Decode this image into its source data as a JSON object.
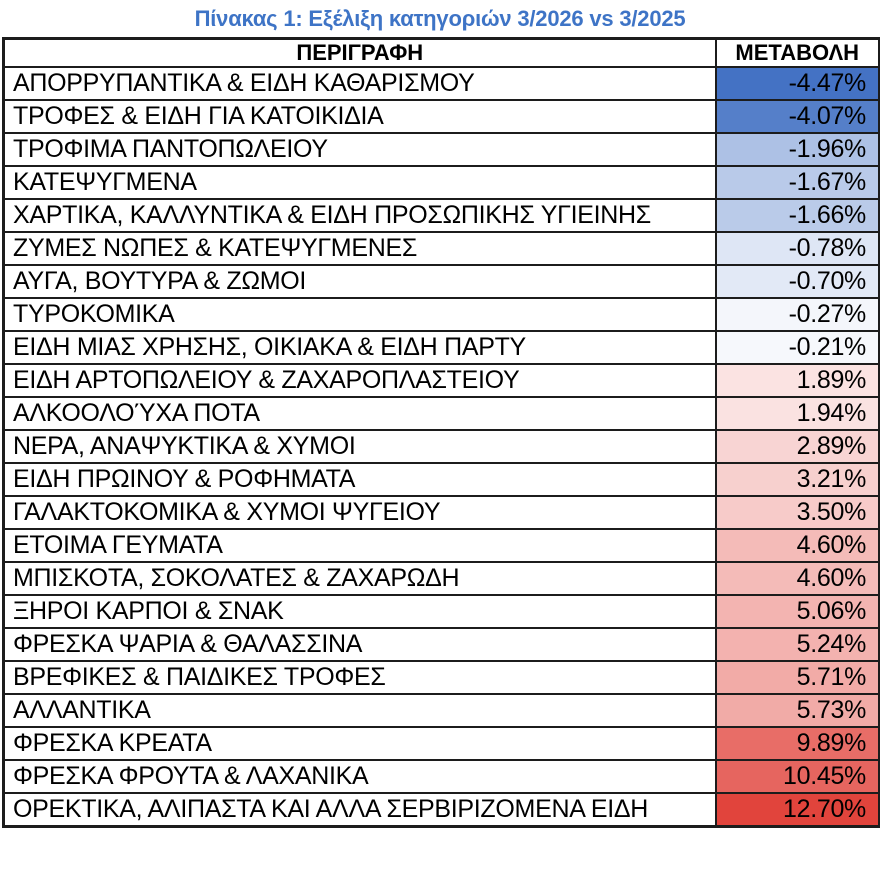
{
  "title": "Πίνακας 1: Εξέλιξη κατηγοριών 3/2026 vs 3/2025",
  "chart_data": {
    "type": "table",
    "title": "Πίνακας 1: Εξέλιξη κατηγοριών 3/2026 vs 3/2025",
    "columns": [
      "ΠΕΡΙΓΡΑΦΗ",
      "ΜΕΤΑΒΟΛΗ"
    ],
    "categories": [
      "ΑΠΟΡΡΥΠΑΝΤΙΚΑ & ΕΙΔΗ ΚΑΘΑΡΙΣΜΟΥ",
      "ΤΡΟΦΕΣ & ΕΙΔΗ ΓΙΑ ΚΑΤΟΙΚΙΔΙΑ",
      "ΤΡΟΦΙΜΑ ΠΑΝΤΟΠΩΛΕΙΟΥ",
      "ΚΑΤΕΨΥΓΜΕΝΑ",
      "ΧΑΡΤΙΚΑ, ΚΑΛΛΥΝΤΙΚΑ & ΕΙΔΗ ΠΡΟΣΩΠΙΚΗΣ ΥΓΙΕΙΝΗΣ",
      "ΖΥΜΕΣ ΝΩΠΕΣ & ΚΑΤΕΨΥΓΜΕΝΕΣ",
      "ΑΥΓΑ, ΒΟΥΤΥΡΑ & ΖΩΜΟΙ",
      "ΤΥΡΟΚΟΜΙΚΑ",
      "ΕΙΔΗ ΜΙΑΣ ΧΡΗΣΗΣ, ΟΙΚΙΑΚΑ & ΕΙΔΗ ΠΑΡΤΥ",
      "ΕΙΔΗ ΑΡΤΟΠΩΛΕΙΟΥ & ΖΑΧΑΡΟΠΛΑΣΤΕΙΟΥ",
      "ΑΛΚΟΟΛΟΎΧΑ ΠΟΤΑ",
      "ΝΕΡΑ, ΑΝΑΨΥΚΤΙΚΑ & ΧΥΜΟΙ",
      "ΕΙΔΗ ΠΡΩΙΝΟΥ & ΡΟΦΗΜΑΤΑ",
      "ΓΑΛΑΚΤΟΚΟΜΙΚΑ & ΧΥΜΟΙ ΨΥΓΕΙΟΥ",
      "ΕΤΟΙΜΑ ΓΕΥΜΑΤΑ",
      "ΜΠΙΣΚΟΤΑ, ΣΟΚΟΛΑΤΕΣ & ΖΑΧΑΡΩΔΗ",
      "ΞΗΡΟΙ ΚΑΡΠΟΙ & ΣΝΑΚ",
      "ΦΡΕΣΚΑ ΨΑΡΙΑ & ΘΑΛΑΣΣΙΝΑ",
      "ΒΡΕΦΙΚΕΣ & ΠΑΙΔΙΚΕΣ ΤΡΟΦΕΣ",
      "ΑΛΛΑΝΤΙΚΑ",
      "ΦΡΕΣΚΑ ΚΡΕΑΤΑ",
      "ΦΡΕΣΚΑ ΦΡΟΥΤΑ & ΛΑΧΑΝΙΚΑ",
      "ΟΡΕΚΤΙΚΑ, ΑΛΙΠΑΣΤΑ ΚΑΙ ΑΛΛΑ ΣΕΡΒΙΡΙΖΟΜΕΝΑ ΕΙΔΗ"
    ],
    "values": [
      -4.47,
      -4.07,
      -1.96,
      -1.67,
      -1.66,
      -0.78,
      -0.7,
      -0.27,
      -0.21,
      1.89,
      1.94,
      2.89,
      3.21,
      3.5,
      4.6,
      4.6,
      5.06,
      5.24,
      5.71,
      5.73,
      9.89,
      10.45,
      12.7
    ],
    "value_suffix": "%",
    "layout": "two-column data table, values right-aligned, heat-map colored value column",
    "color_coding": "3-color scale: blue at most negative, white at zero, red at most positive"
  },
  "color_scale": {
    "min_value": -4.47,
    "mid_value": 0,
    "max_value": 12.7,
    "min_color": "#4472C4",
    "mid_color": "#FFFFFF",
    "max_color": "#E1443C"
  },
  "colors": {
    "title_text": "#3E74C6",
    "border": "#1C1C1C",
    "header_bg": "#FFFFFF",
    "cell_text": "#000000"
  }
}
